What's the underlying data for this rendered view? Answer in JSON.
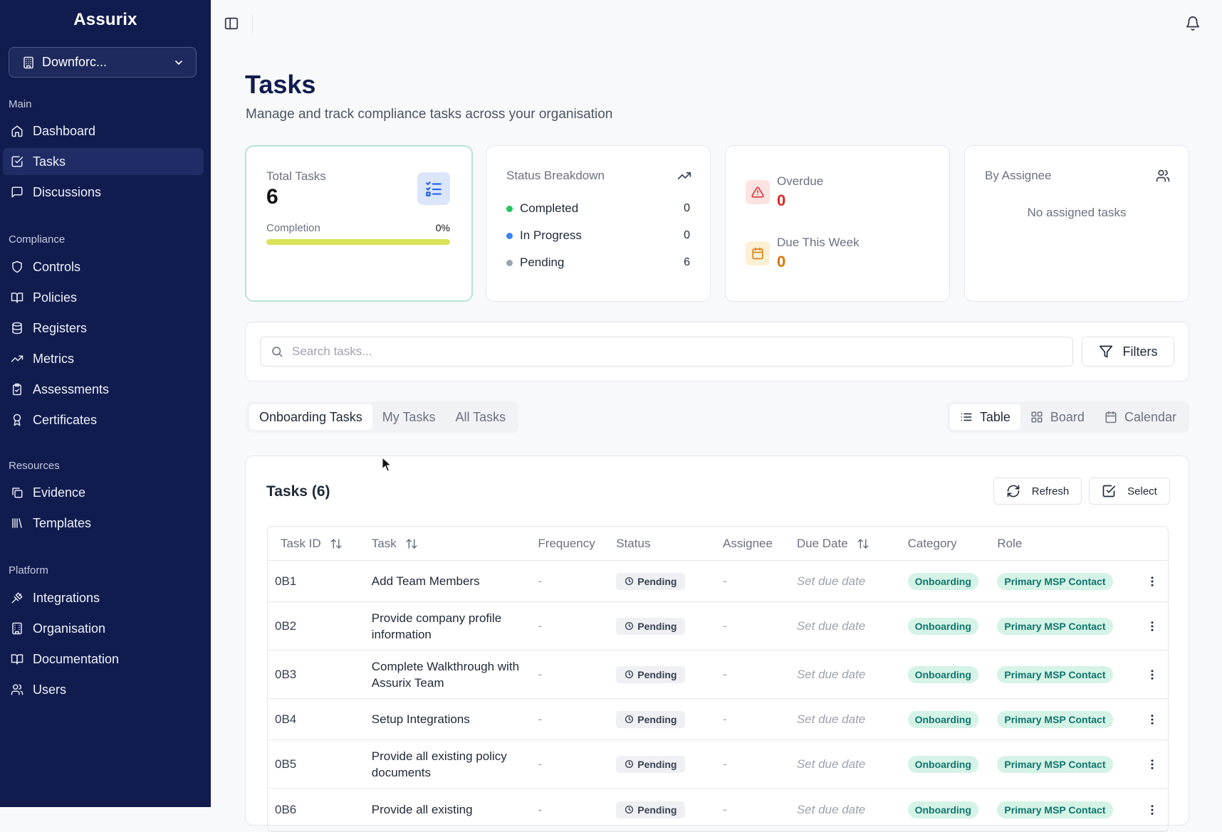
{
  "app": {
    "brand": "Assurix"
  },
  "org_selector": {
    "label": "Downforc..."
  },
  "sidebar": {
    "sections": [
      {
        "label": "Main",
        "items": [
          {
            "label": "Dashboard",
            "icon": "home-icon"
          },
          {
            "label": "Tasks",
            "icon": "check-square-icon",
            "active": true
          },
          {
            "label": "Discussions",
            "icon": "message-icon"
          }
        ]
      },
      {
        "label": "Compliance",
        "items": [
          {
            "label": "Controls",
            "icon": "shield-icon"
          },
          {
            "label": "Policies",
            "icon": "book-icon"
          },
          {
            "label": "Registers",
            "icon": "database-icon"
          },
          {
            "label": "Metrics",
            "icon": "trending-up-icon"
          },
          {
            "label": "Assessments",
            "icon": "clipboard-check-icon"
          },
          {
            "label": "Certificates",
            "icon": "award-icon"
          }
        ]
      },
      {
        "label": "Resources",
        "items": [
          {
            "label": "Evidence",
            "icon": "copy-icon"
          },
          {
            "label": "Templates",
            "icon": "library-icon"
          }
        ]
      },
      {
        "label": "Platform",
        "items": [
          {
            "label": "Integrations",
            "icon": "plug-icon"
          },
          {
            "label": "Organisation",
            "icon": "building-icon"
          },
          {
            "label": "Documentation",
            "icon": "book-open-icon"
          },
          {
            "label": "Users",
            "icon": "users-icon"
          }
        ]
      }
    ]
  },
  "header": {
    "title": "Tasks",
    "subtitle": "Manage and track compliance tasks across your organisation"
  },
  "stats": {
    "total": {
      "title": "Total Tasks",
      "value": "6",
      "completion_label": "Completion",
      "completion_pct": "0%",
      "completion_fraction": 0
    },
    "status": {
      "title": "Status Breakdown",
      "rows": [
        {
          "label": "Completed",
          "value": "0",
          "color": "#22c55e"
        },
        {
          "label": "In Progress",
          "value": "0",
          "color": "#3b82f6"
        },
        {
          "label": "Pending",
          "value": "6",
          "color": "#9ca3af"
        }
      ]
    },
    "overdue": {
      "label": "Overdue",
      "value": "0",
      "color": "#dc2626"
    },
    "due_week": {
      "label": "Due This Week",
      "value": "0",
      "color": "#d97706"
    },
    "assignee": {
      "title": "By Assignee",
      "empty": "No assigned tasks"
    }
  },
  "search": {
    "placeholder": "Search tasks...",
    "value": "",
    "filters_label": "Filters"
  },
  "tabs": [
    {
      "label": "Onboarding Tasks",
      "active": true
    },
    {
      "label": "My Tasks"
    },
    {
      "label": "All Tasks"
    }
  ],
  "views": [
    {
      "label": "Table",
      "icon": "list-icon",
      "active": true
    },
    {
      "label": "Board",
      "icon": "grid-icon"
    },
    {
      "label": "Calendar",
      "icon": "calendar-icon"
    }
  ],
  "table": {
    "title": "Tasks (6)",
    "refresh_label": "Refresh",
    "select_label": "Select",
    "columns": [
      "Task ID",
      "Task",
      "Frequency",
      "Status",
      "Assignee",
      "Due Date",
      "Category",
      "Role"
    ],
    "rows": [
      {
        "id": "0B1",
        "task": "Add Team Members",
        "frequency": "-",
        "status": "Pending",
        "assignee": "-",
        "due": "Set due date",
        "category": "Onboarding",
        "role": "Primary MSP Contact"
      },
      {
        "id": "0B2",
        "task": "Provide company profile information",
        "frequency": "-",
        "status": "Pending",
        "assignee": "-",
        "due": "Set due date",
        "category": "Onboarding",
        "role": "Primary MSP Contact"
      },
      {
        "id": "0B3",
        "task": "Complete Walkthrough with Assurix Team",
        "frequency": "-",
        "status": "Pending",
        "assignee": "-",
        "due": "Set due date",
        "category": "Onboarding",
        "role": "Primary MSP Contact"
      },
      {
        "id": "0B4",
        "task": "Setup Integrations",
        "frequency": "-",
        "status": "Pending",
        "assignee": "-",
        "due": "Set due date",
        "category": "Onboarding",
        "role": "Primary MSP Contact"
      },
      {
        "id": "0B5",
        "task": "Provide all existing policy documents",
        "frequency": "-",
        "status": "Pending",
        "assignee": "-",
        "due": "Set due date",
        "category": "Onboarding",
        "role": "Primary MSP Contact"
      },
      {
        "id": "0B6",
        "task": "Provide all existing",
        "frequency": "-",
        "status": "Pending",
        "assignee": "-",
        "due": "Set due date",
        "category": "Onboarding",
        "role": "Primary MSP Contact"
      }
    ]
  }
}
